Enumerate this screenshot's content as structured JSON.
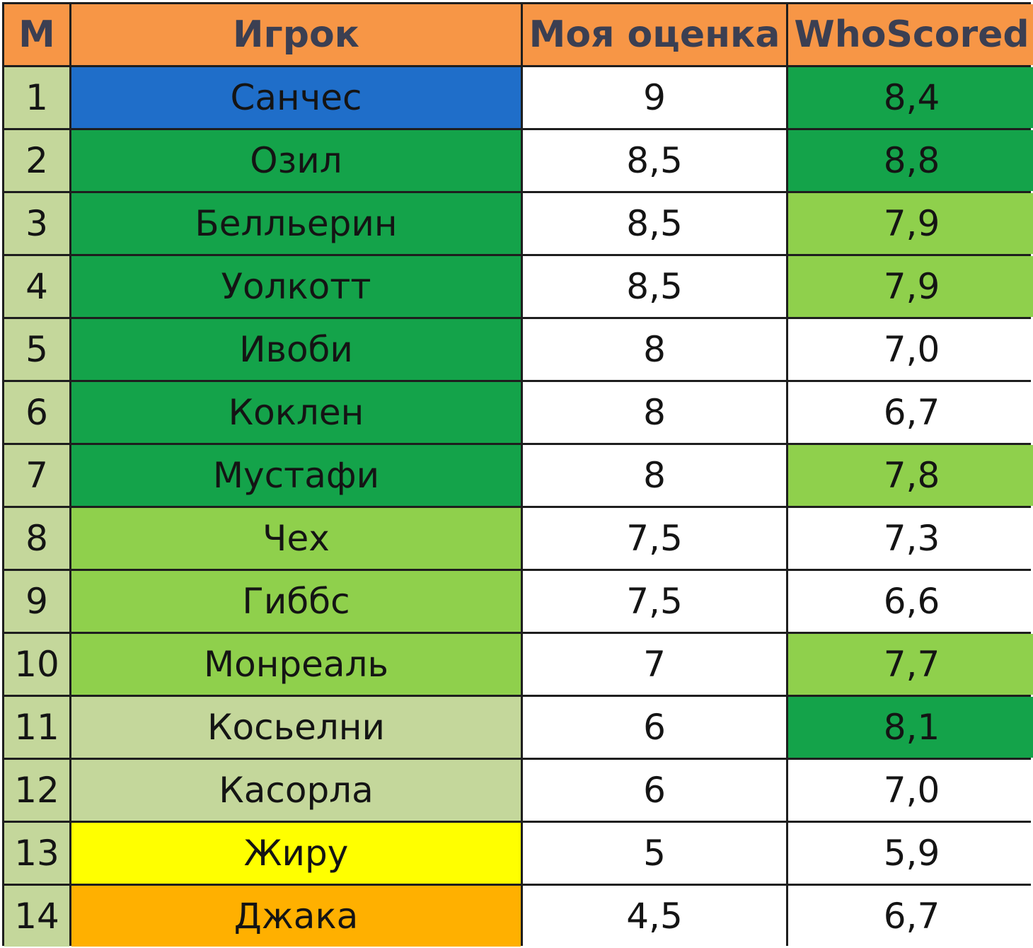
{
  "table": {
    "headers": [
      "М",
      "Игрок",
      "Моя оценка",
      "WhoScored"
    ],
    "colors": {
      "header_bg": "#f79646",
      "number_bg": "#c4d79b",
      "blue": "#1f6ec9",
      "dark_green": "#14a34a",
      "light_green": "#8fd04c",
      "pale_green": "#c4d79b",
      "yellow": "#ffff00",
      "orange": "#ffb000",
      "white": "#ffffff"
    },
    "rows": [
      {
        "num": "1",
        "player": "Санчес",
        "my": "9",
        "ws": "8,4",
        "player_color": "#1f6ec9",
        "ws_color": "#14a34a"
      },
      {
        "num": "2",
        "player": "Озил",
        "my": "8,5",
        "ws": "8,8",
        "player_color": "#14a34a",
        "ws_color": "#14a34a"
      },
      {
        "num": "3",
        "player": "Белльерин",
        "my": "8,5",
        "ws": "7,9",
        "player_color": "#14a34a",
        "ws_color": "#8fd04c"
      },
      {
        "num": "4",
        "player": "Уолкотт",
        "my": "8,5",
        "ws": "7,9",
        "player_color": "#14a34a",
        "ws_color": "#8fd04c"
      },
      {
        "num": "5",
        "player": "Ивоби",
        "my": "8",
        "ws": "7,0",
        "player_color": "#14a34a",
        "ws_color": "#ffffff"
      },
      {
        "num": "6",
        "player": "Коклен",
        "my": "8",
        "ws": "6,7",
        "player_color": "#14a34a",
        "ws_color": "#ffffff"
      },
      {
        "num": "7",
        "player": "Мустафи",
        "my": "8",
        "ws": "7,8",
        "player_color": "#14a34a",
        "ws_color": "#8fd04c"
      },
      {
        "num": "8",
        "player": "Чех",
        "my": "7,5",
        "ws": "7,3",
        "player_color": "#8fd04c",
        "ws_color": "#ffffff"
      },
      {
        "num": "9",
        "player": "Гиббс",
        "my": "7,5",
        "ws": "6,6",
        "player_color": "#8fd04c",
        "ws_color": "#ffffff"
      },
      {
        "num": "10",
        "player": "Монреаль",
        "my": "7",
        "ws": "7,7",
        "player_color": "#8fd04c",
        "ws_color": "#8fd04c"
      },
      {
        "num": "11",
        "player": "Косьелни",
        "my": "6",
        "ws": "8,1",
        "player_color": "#c4d79b",
        "ws_color": "#14a34a"
      },
      {
        "num": "12",
        "player": "Касорла",
        "my": "6",
        "ws": "7,0",
        "player_color": "#c4d79b",
        "ws_color": "#ffffff"
      },
      {
        "num": "13",
        "player": "Жиру",
        "my": "5",
        "ws": "5,9",
        "player_color": "#ffff00",
        "ws_color": "#ffffff"
      },
      {
        "num": "14",
        "player": "Джака",
        "my": "4,5",
        "ws": "6,7",
        "player_color": "#ffb000",
        "ws_color": "#ffffff"
      }
    ]
  }
}
